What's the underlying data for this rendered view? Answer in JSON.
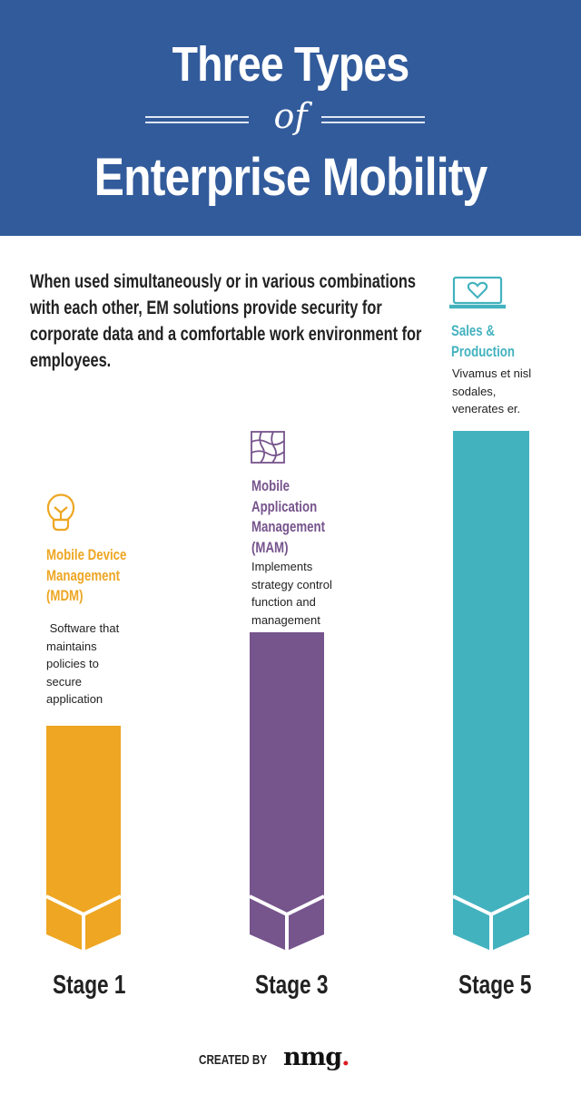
{
  "header": {
    "title_line1": "Three Types",
    "title_connector": "of",
    "title_line2": "Enterprise Mobility",
    "background": "#325b9b"
  },
  "intro": {
    "lines": [
      "When used simultaneously or in various combinations",
      "with each other, EM solutions provide security for",
      "corporate data and a comfortable work environment for",
      "employees."
    ]
  },
  "columns": [
    {
      "icon": "lightbulb-icon",
      "color": "#eea623",
      "title_lines": [
        "Mobile Device",
        "Management",
        "(MDM)"
      ],
      "desc_lines": [
        " Software that",
        "maintains",
        "policies to",
        "secure",
        "application"
      ],
      "stage": "Stage 1"
    },
    {
      "icon": "grid-network-icon",
      "color": "#76548c",
      "title_lines": [
        "Mobile",
        "Application",
        "Management",
        "(MAM)"
      ],
      "desc_lines": [
        "Implements",
        "strategy control",
        "function and",
        "management"
      ],
      "stage": "Stage 3"
    },
    {
      "icon": "laptop-heart-icon",
      "color": "#43b2bf",
      "title_lines": [
        "Sales &",
        "Production"
      ],
      "desc_lines": [
        "Vivamus et nisl",
        "sodales,",
        "venerates er."
      ],
      "stage": "Stage 5"
    }
  ],
  "footer": {
    "created_by": "CREATED BY",
    "logo": "nmg."
  }
}
